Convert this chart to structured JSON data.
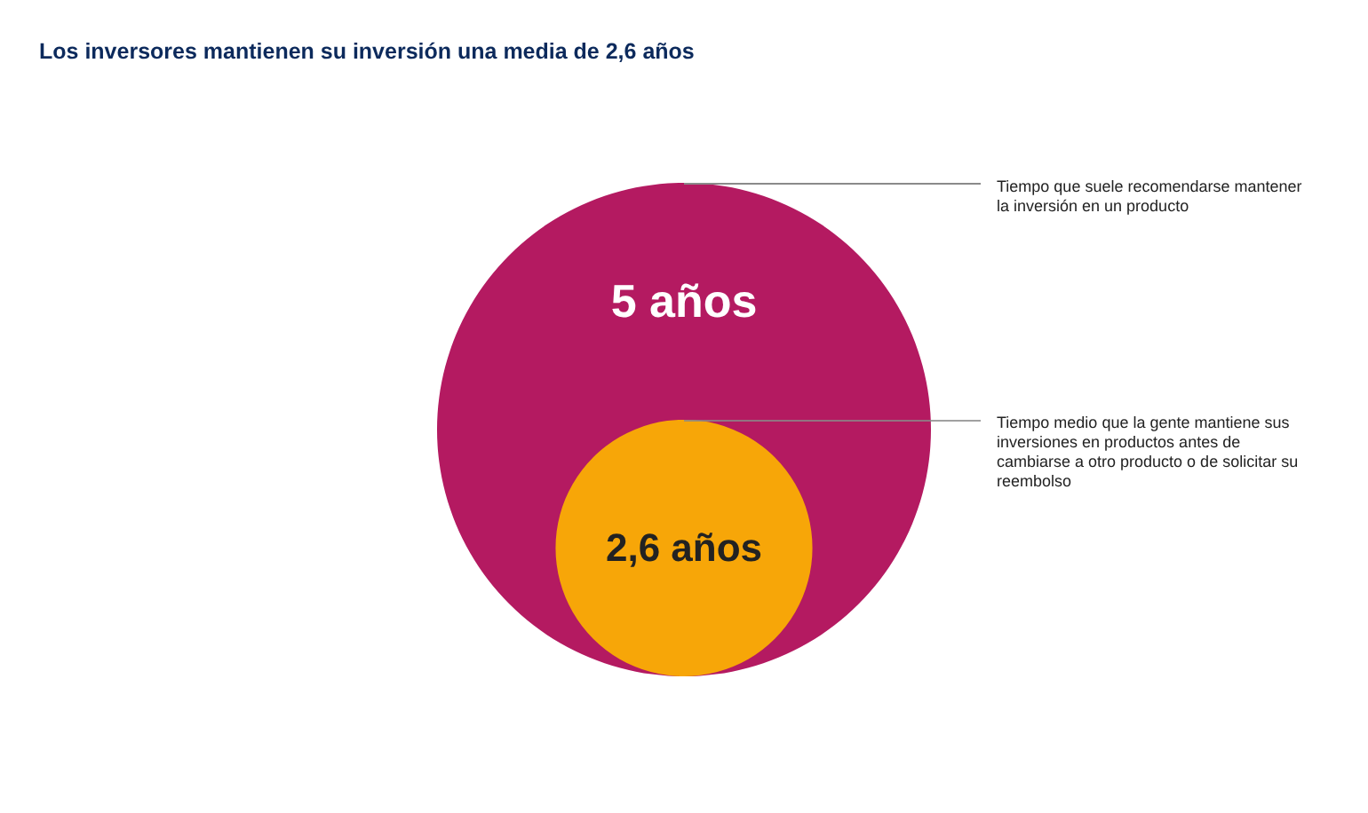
{
  "chart_data": {
    "type": "other",
    "title": "Los inversores mantienen su inversión una media de 2,6 años",
    "categories": [
      "Tiempo que suele recomendarse mantener la inversión en un producto",
      "Tiempo medio que la gente mantiene sus inversiones en productos antes de cambiarse a otro producto o de solicitar su reembolso"
    ],
    "values": [
      5,
      2.6
    ],
    "value_labels": [
      "5 años",
      "2,6 años"
    ],
    "colors": [
      "#b41a61",
      "#f7a608"
    ]
  }
}
